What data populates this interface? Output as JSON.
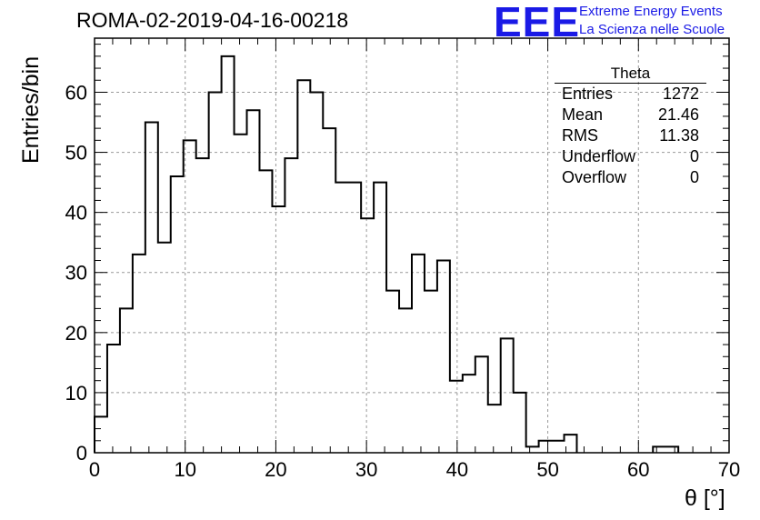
{
  "header": {
    "run_title": "ROMA-02-2019-04-16-00218"
  },
  "logo": {
    "mark": "EEE",
    "line1": "Extreme Energy Events",
    "line2": "La Scienza nelle Scuole",
    "color": "#1a1ae6"
  },
  "stats": {
    "title": "Theta",
    "rows": [
      {
        "label": "Entries",
        "value": "1272"
      },
      {
        "label": "Mean",
        "value": "21.46"
      },
      {
        "label": "RMS",
        "value": "11.38"
      },
      {
        "label": "Underflow",
        "value": "0"
      },
      {
        "label": "Overflow",
        "value": "0"
      }
    ]
  },
  "chart_data": {
    "type": "bar",
    "histogram": true,
    "bin_width": 1.4,
    "x_range": [
      0,
      70
    ],
    "ylim": [
      0,
      69
    ],
    "xlabel": "θ [°]",
    "ylabel": "Entries/bin",
    "x_ticks": [
      "0",
      "10",
      "20",
      "30",
      "40",
      "50",
      "60",
      "70"
    ],
    "y_ticks": [
      "0",
      "10",
      "20",
      "30",
      "40",
      "50",
      "60"
    ],
    "grid": true,
    "values": [
      6,
      18,
      24,
      33,
      55,
      35,
      46,
      52,
      49,
      60,
      66,
      53,
      57,
      47,
      41,
      49,
      62,
      60,
      54,
      45,
      45,
      39,
      45,
      27,
      24,
      33,
      27,
      32,
      12,
      13,
      16,
      8,
      19,
      10,
      1,
      2,
      2,
      3,
      0,
      0,
      0,
      0,
      0,
      0,
      1,
      1,
      0,
      0,
      0,
      0
    ],
    "line_color": "#000000"
  }
}
